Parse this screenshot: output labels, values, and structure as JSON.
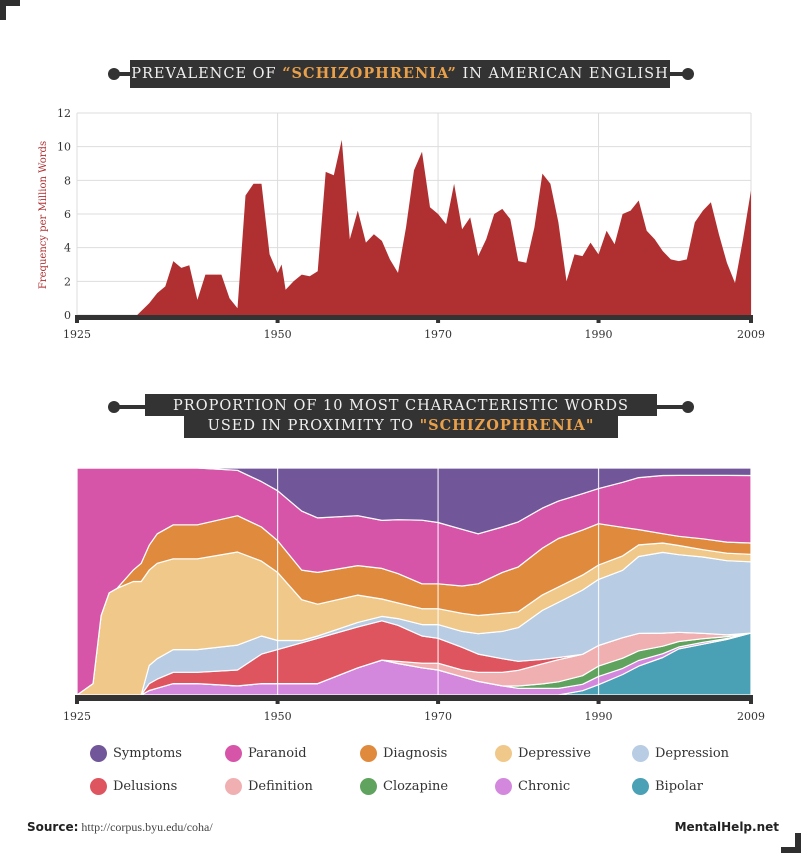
{
  "banner1": {
    "pre": "PREVALENCE OF ",
    "highlight": "“SCHIZOPHRENIA”",
    "post": " IN AMERICAN ENGLISH"
  },
  "banner2": {
    "line1": "PROPORTION OF 10 MOST CHARACTERISTIC WORDS",
    "pre": "USED IN PROXIMITY TO ",
    "highlight": "\"SCHIZOPHRENIA\""
  },
  "colors": {
    "area": "#b03032",
    "banner_bg": "#333333",
    "highlight": "#e9a04a",
    "axis": "#333333",
    "ylabel": "#b03032"
  },
  "chart_data": [
    {
      "type": "area",
      "title": "PREVALENCE OF “SCHIZOPHRENIA” IN AMERICAN ENGLISH",
      "xlabel": "",
      "ylabel": "Frequency per Million Words",
      "xlim": [
        1925,
        2009
      ],
      "ylim": [
        0,
        12
      ],
      "xticks": [
        1925,
        1950,
        1970,
        1990,
        2009
      ],
      "yticks": [
        0,
        2,
        4,
        6,
        8,
        10,
        12
      ],
      "grid": true,
      "x": [
        1925,
        1932.5,
        1934,
        1935,
        1936,
        1937,
        1938,
        1939,
        1940,
        1941,
        1942,
        1943,
        1944,
        1945,
        1946,
        1947,
        1948,
        1949,
        1950,
        1950.5,
        1951,
        1952,
        1953,
        1954,
        1955,
        1956,
        1957,
        1958,
        1959,
        1960,
        1961,
        1962,
        1963,
        1964,
        1965,
        1966,
        1967,
        1968,
        1969,
        1970,
        1971,
        1972,
        1973,
        1974,
        1975,
        1976,
        1977,
        1978,
        1979,
        1980,
        1981,
        1982,
        1983,
        1984,
        1985,
        1986,
        1987,
        1988,
        1989,
        1990,
        1991,
        1992,
        1993,
        1994,
        1995,
        1996,
        1997,
        1998,
        1999,
        2000,
        2001,
        2002,
        2003,
        2004,
        2005,
        2006,
        2007,
        2008,
        2009
      ],
      "values": [
        0,
        0,
        0.7,
        1.3,
        1.7,
        3.2,
        2.8,
        2.95,
        0.9,
        2.4,
        2.4,
        2.4,
        1.0,
        0.4,
        7.1,
        7.8,
        7.8,
        3.6,
        2.5,
        3.0,
        1.5,
        2.0,
        2.4,
        2.3,
        2.6,
        8.5,
        8.3,
        10.4,
        4.5,
        6.2,
        4.3,
        4.8,
        4.4,
        3.3,
        2.5,
        5.2,
        8.6,
        9.7,
        6.4,
        6.0,
        5.4,
        7.8,
        5.1,
        5.8,
        3.5,
        4.5,
        6.0,
        6.3,
        5.7,
        3.2,
        3.1,
        5.2,
        8.4,
        7.8,
        5.5,
        2.0,
        3.6,
        3.5,
        4.3,
        3.6,
        5.0,
        4.2,
        6.0,
        6.2,
        6.8,
        5.0,
        4.5,
        3.8,
        3.3,
        3.2,
        3.3,
        5.5,
        6.2,
        6.7,
        4.8,
        3.1,
        1.9,
        4.5,
        7.4
      ]
    },
    {
      "type": "area",
      "subtype": "stacked-100",
      "title": "PROPORTION OF 10 MOST CHARACTERISTIC WORDS USED IN PROXIMITY TO \"SCHIZOPHRENIA\"",
      "xlim": [
        1925,
        2009
      ],
      "ylim": [
        0,
        1
      ],
      "xticks": [
        1925,
        1950,
        1970,
        1990,
        2009
      ],
      "grid": false,
      "legend_position": "bottom",
      "x": [
        1925,
        1927,
        1928,
        1929,
        1930,
        1932,
        1933,
        1934,
        1935,
        1937,
        1940,
        1945,
        1948,
        1950,
        1953,
        1955,
        1960,
        1963,
        1965,
        1968,
        1970,
        1973,
        1975,
        1978,
        1980,
        1983,
        1985,
        1988,
        1990,
        1993,
        1995,
        1998,
        2000,
        2003,
        2006,
        2009
      ],
      "series": [
        {
          "name": "Bipolar",
          "color": "#4aa0b5",
          "values": [
            0,
            0,
            0,
            0,
            0,
            0,
            0,
            0,
            0,
            0,
            0,
            0,
            0,
            0,
            0,
            0,
            0,
            0,
            0,
            0,
            0,
            0,
            0,
            0,
            0,
            0,
            0,
            0.02,
            0.05,
            0.1,
            0.15,
            0.2,
            0.25,
            0.28,
            0.3,
            0.33
          ]
        },
        {
          "name": "Chronic",
          "color": "#d388dd",
          "values": [
            0,
            0,
            0,
            0,
            0,
            0,
            0,
            0.02,
            0.03,
            0.05,
            0.05,
            0.04,
            0.05,
            0.05,
            0.05,
            0.05,
            0.12,
            0.16,
            0.14,
            0.12,
            0.11,
            0.08,
            0.06,
            0.04,
            0.03,
            0.03,
            0.03,
            0.03,
            0.04,
            0.03,
            0.03,
            0.02,
            0.01,
            0.01,
            0.005,
            0.0
          ]
        },
        {
          "name": "Clozapine",
          "color": "#5fa35f",
          "values": [
            0,
            0,
            0,
            0,
            0,
            0,
            0,
            0,
            0,
            0,
            0,
            0,
            0,
            0,
            0,
            0,
            0,
            0,
            0,
            0,
            0,
            0,
            0,
            0,
            0.01,
            0.02,
            0.03,
            0.04,
            0.05,
            0.05,
            0.05,
            0.04,
            0.03,
            0.02,
            0.01,
            0.0
          ]
        },
        {
          "name": "Definition",
          "color": "#f0b0b2",
          "values": [
            0,
            0,
            0,
            0,
            0,
            0,
            0,
            0,
            0,
            0,
            0,
            0,
            0,
            0,
            0,
            0,
            0,
            0,
            0.01,
            0.02,
            0.03,
            0.03,
            0.04,
            0.06,
            0.07,
            0.09,
            0.1,
            0.1,
            0.1,
            0.1,
            0.09,
            0.07,
            0.05,
            0.03,
            0.01,
            0.0
          ]
        },
        {
          "name": "Delusions",
          "color": "#de5560",
          "values": [
            0,
            0,
            0,
            0,
            0,
            0,
            0,
            0.03,
            0.04,
            0.05,
            0.05,
            0.07,
            0.13,
            0.15,
            0.18,
            0.2,
            0.18,
            0.18,
            0.16,
            0.12,
            0.11,
            0.1,
            0.08,
            0.06,
            0.04,
            0.02,
            0.01,
            0,
            0,
            0,
            0,
            0,
            0,
            0,
            0,
            0
          ]
        },
        {
          "name": "Depression",
          "color": "#b8cce4",
          "values": [
            0,
            0,
            0,
            0,
            0,
            0,
            0,
            0.08,
            0.09,
            0.1,
            0.1,
            0.11,
            0.08,
            0.04,
            0.01,
            0.01,
            0.02,
            0.02,
            0.03,
            0.05,
            0.06,
            0.07,
            0.09,
            0.12,
            0.15,
            0.22,
            0.25,
            0.3,
            0.32,
            0.33,
            0.4,
            0.43,
            0.42,
            0.42,
            0.4,
            0.38
          ]
        },
        {
          "name": "Depressive",
          "color": "#f0c98a",
          "values": [
            0,
            0.05,
            0.35,
            0.45,
            0.47,
            0.5,
            0.5,
            0.42,
            0.42,
            0.4,
            0.4,
            0.41,
            0.33,
            0.3,
            0.18,
            0.14,
            0.12,
            0.08,
            0.07,
            0.07,
            0.07,
            0.08,
            0.08,
            0.08,
            0.07,
            0.07,
            0.07,
            0.07,
            0.07,
            0.07,
            0.06,
            0.05,
            0.05,
            0.04,
            0.04,
            0.04
          ]
        },
        {
          "name": "Diagnosis",
          "color": "#e08a3e",
          "values": [
            0,
            0,
            0,
            0,
            0,
            0.05,
            0.08,
            0.11,
            0.13,
            0.15,
            0.15,
            0.16,
            0.15,
            0.14,
            0.13,
            0.14,
            0.13,
            0.14,
            0.13,
            0.11,
            0.11,
            0.12,
            0.14,
            0.18,
            0.2,
            0.21,
            0.22,
            0.21,
            0.2,
            0.14,
            0.08,
            0.05,
            0.05,
            0.06,
            0.06,
            0.06
          ]
        },
        {
          "name": "Paranoid",
          "color": "#d655a9",
          "values": [
            1,
            0.95,
            0.65,
            0.55,
            0.53,
            0.45,
            0.42,
            0.34,
            0.29,
            0.25,
            0.25,
            0.2,
            0.2,
            0.22,
            0.26,
            0.24,
            0.22,
            0.22,
            0.24,
            0.28,
            0.27,
            0.25,
            0.22,
            0.2,
            0.2,
            0.18,
            0.17,
            0.17,
            0.17,
            0.22,
            0.27,
            0.31,
            0.33,
            0.35,
            0.36,
            0.36
          ]
        },
        {
          "name": "Symptoms",
          "color": "#71569a",
          "values": [
            0,
            0,
            0,
            0,
            0,
            0,
            0,
            0,
            0,
            0,
            0,
            0.01,
            0.06,
            0.1,
            0.19,
            0.22,
            0.21,
            0.24,
            0.23,
            0.23,
            0.24,
            0.27,
            0.29,
            0.26,
            0.24,
            0.18,
            0.15,
            0.12,
            0.1,
            0.07,
            0.05,
            0.04,
            0.04,
            0.04,
            0.04,
            0.04
          ]
        }
      ]
    }
  ],
  "legend": [
    {
      "label": "Symptoms",
      "color": "#71569a"
    },
    {
      "label": "Paranoid",
      "color": "#d655a9"
    },
    {
      "label": "Diagnosis",
      "color": "#e08a3e"
    },
    {
      "label": "Depressive",
      "color": "#f0c98a"
    },
    {
      "label": "Depression",
      "color": "#b8cce4"
    },
    {
      "label": "Delusions",
      "color": "#de5560"
    },
    {
      "label": "Definition",
      "color": "#f0b0b2"
    },
    {
      "label": "Clozapine",
      "color": "#5fa35f"
    },
    {
      "label": "Chronic",
      "color": "#d388dd"
    },
    {
      "label": "Bipolar",
      "color": "#4aa0b5"
    }
  ],
  "footer": {
    "source_label": "Source:",
    "source_url": "http://corpus.byu.edu/coha/",
    "brand": "MentalHelp.net"
  }
}
